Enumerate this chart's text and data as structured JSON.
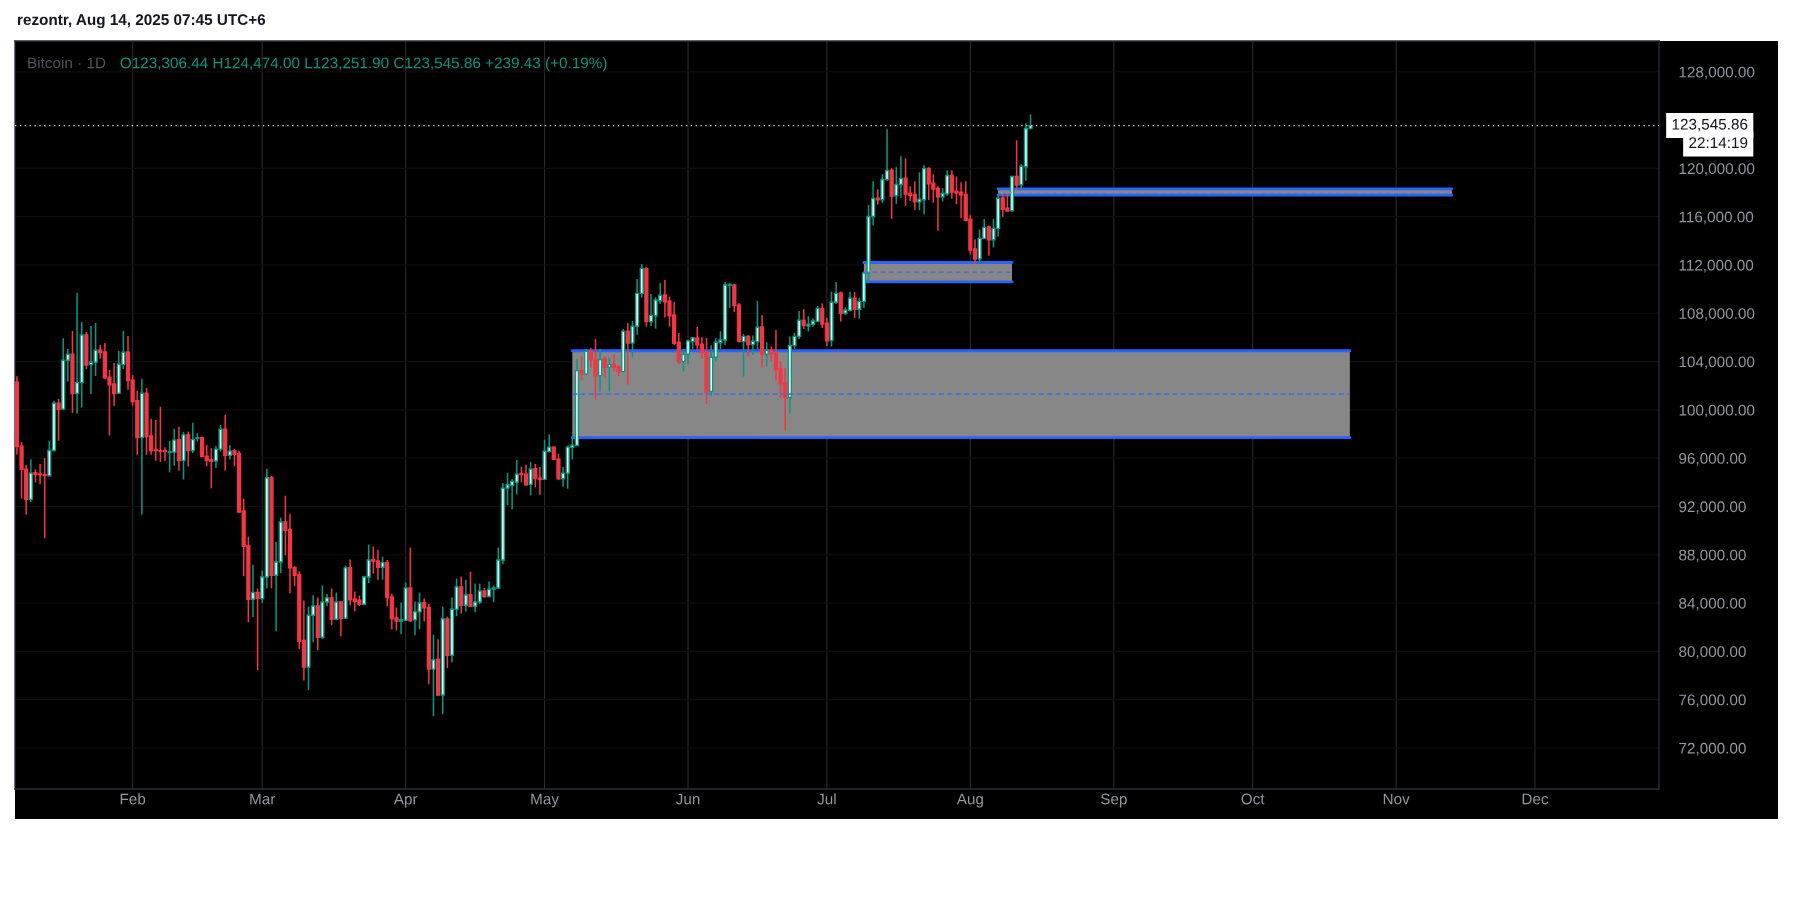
{
  "chart_data": {
    "type": "candlestick",
    "title": "rezontr, Aug 14, 2025 07:45 UTC+6",
    "subtitle": "Bitcoin · 1D",
    "annotations": [
      "O123,306.44 H124,474.00 L123,251.90 C123,545.86 +239.43 (+0.19%)",
      "22:14:19"
    ],
    "x": [
      "2025-01-07",
      "2025-01-08",
      "2025-01-09",
      "2025-01-10",
      "2025-01-11",
      "2025-01-12",
      "2025-01-13",
      "2025-01-14",
      "2025-01-15",
      "2025-01-16",
      "2025-01-17",
      "2025-01-18",
      "2025-01-19",
      "2025-01-20",
      "2025-01-21",
      "2025-01-22",
      "2025-01-23",
      "2025-01-24",
      "2025-01-25",
      "2025-01-26",
      "2025-01-27",
      "2025-01-28",
      "2025-01-29",
      "2025-01-30",
      "2025-01-31",
      "2025-02-01",
      "2025-02-02",
      "2025-02-03",
      "2025-02-04",
      "2025-02-05",
      "2025-02-06",
      "2025-02-07",
      "2025-02-08",
      "2025-02-09",
      "2025-02-10",
      "2025-02-11",
      "2025-02-12",
      "2025-02-13",
      "2025-02-14",
      "2025-02-15",
      "2025-02-16",
      "2025-02-17",
      "2025-02-18",
      "2025-02-19",
      "2025-02-20",
      "2025-02-21",
      "2025-02-22",
      "2025-02-23",
      "2025-02-24",
      "2025-02-25",
      "2025-02-26",
      "2025-02-27",
      "2025-02-28",
      "2025-03-01",
      "2025-03-02",
      "2025-03-03",
      "2025-03-04",
      "2025-03-05",
      "2025-03-06",
      "2025-03-07",
      "2025-03-08",
      "2025-03-09",
      "2025-03-10",
      "2025-03-11",
      "2025-03-12",
      "2025-03-13",
      "2025-03-14",
      "2025-03-15",
      "2025-03-16",
      "2025-03-17",
      "2025-03-18",
      "2025-03-19",
      "2025-03-20",
      "2025-03-21",
      "2025-03-22",
      "2025-03-23",
      "2025-03-24",
      "2025-03-25",
      "2025-03-26",
      "2025-03-27",
      "2025-03-28",
      "2025-03-29",
      "2025-03-30",
      "2025-03-31",
      "2025-04-01",
      "2025-04-02",
      "2025-04-03",
      "2025-04-04",
      "2025-04-05",
      "2025-04-06",
      "2025-04-07",
      "2025-04-08",
      "2025-04-09",
      "2025-04-10",
      "2025-04-11",
      "2025-04-12",
      "2025-04-13",
      "2025-04-14",
      "2025-04-15",
      "2025-04-16",
      "2025-04-17",
      "2025-04-18",
      "2025-04-19",
      "2025-04-20",
      "2025-04-21",
      "2025-04-22",
      "2025-04-23",
      "2025-04-24",
      "2025-04-25",
      "2025-04-26",
      "2025-04-27",
      "2025-04-28",
      "2025-04-29",
      "2025-04-30",
      "2025-05-01",
      "2025-05-02",
      "2025-05-03",
      "2025-05-04",
      "2025-05-05",
      "2025-05-06",
      "2025-05-07",
      "2025-05-08",
      "2025-05-09",
      "2025-05-10",
      "2025-05-11",
      "2025-05-12",
      "2025-05-13",
      "2025-05-14",
      "2025-05-15",
      "2025-05-16",
      "2025-05-17",
      "2025-05-18",
      "2025-05-19",
      "2025-05-20",
      "2025-05-21",
      "2025-05-22",
      "2025-05-23",
      "2025-05-24",
      "2025-05-25",
      "2025-05-26",
      "2025-05-27",
      "2025-05-28",
      "2025-05-29",
      "2025-05-30",
      "2025-05-31",
      "2025-06-01",
      "2025-06-02",
      "2025-06-03",
      "2025-06-04",
      "2025-06-05",
      "2025-06-06",
      "2025-06-07",
      "2025-06-08",
      "2025-06-09",
      "2025-06-10",
      "2025-06-11",
      "2025-06-12",
      "2025-06-13",
      "2025-06-14",
      "2025-06-15",
      "2025-06-16",
      "2025-06-17",
      "2025-06-18",
      "2025-06-19",
      "2025-06-20",
      "2025-06-21",
      "2025-06-22",
      "2025-06-23",
      "2025-06-24",
      "2025-06-25",
      "2025-06-26",
      "2025-06-27",
      "2025-06-28",
      "2025-06-29",
      "2025-06-30",
      "2025-07-01",
      "2025-07-02",
      "2025-07-03",
      "2025-07-04",
      "2025-07-05",
      "2025-07-06",
      "2025-07-07",
      "2025-07-08",
      "2025-07-09",
      "2025-07-10",
      "2025-07-11",
      "2025-07-12",
      "2025-07-13",
      "2025-07-14",
      "2025-07-15",
      "2025-07-16",
      "2025-07-17",
      "2025-07-18",
      "2025-07-19",
      "2025-07-20",
      "2025-07-21",
      "2025-07-22",
      "2025-07-23",
      "2025-07-24",
      "2025-07-25",
      "2025-07-26",
      "2025-07-27",
      "2025-07-28",
      "2025-07-29",
      "2025-07-30",
      "2025-07-31",
      "2025-08-01",
      "2025-08-02",
      "2025-08-03",
      "2025-08-04",
      "2025-08-05",
      "2025-08-06",
      "2025-08-07",
      "2025-08-08",
      "2025-08-09",
      "2025-08-10",
      "2025-08-11",
      "2025-08-12",
      "2025-08-13",
      "2025-08-14"
    ],
    "ohlc": [
      [
        102290,
        102790,
        96310,
        96970
      ],
      [
        97000,
        97330,
        92640,
        95070
      ],
      [
        95090,
        95450,
        91340,
        92590
      ],
      [
        92590,
        95920,
        92360,
        94760
      ],
      [
        94790,
        95090,
        93990,
        94650
      ],
      [
        94680,
        95510,
        93830,
        94630
      ],
      [
        94630,
        96000,
        89360,
        94570
      ],
      [
        94540,
        97410,
        94490,
        96640
      ],
      [
        96640,
        100750,
        96580,
        100550
      ],
      [
        100550,
        100910,
        97440,
        100030
      ],
      [
        100060,
        105930,
        100030,
        104110
      ],
      [
        104110,
        105050,
        102340,
        104610
      ],
      [
        104610,
        106540,
        99750,
        101350
      ],
      [
        101350,
        109680,
        99700,
        102260
      ],
      [
        102260,
        107280,
        100190,
        106200
      ],
      [
        106200,
        106450,
        103390,
        103720
      ],
      [
        103750,
        106950,
        101320,
        103940
      ],
      [
        103940,
        107200,
        102810,
        104940
      ],
      [
        104960,
        105380,
        104250,
        104740
      ],
      [
        104800,
        105540,
        102570,
        102650
      ],
      [
        102700,
        103310,
        97880,
        102070
      ],
      [
        102150,
        103890,
        100330,
        101350
      ],
      [
        101380,
        104880,
        101320,
        103780
      ],
      [
        103750,
        106540,
        103390,
        104770
      ],
      [
        104800,
        106120,
        101660,
        102430
      ],
      [
        102480,
        102870,
        100360,
        100690
      ],
      [
        100750,
        101570,
        96280,
        97710
      ],
      [
        97710,
        102570,
        91340,
        101380
      ],
      [
        101380,
        101820,
        96280,
        97800
      ],
      [
        97850,
        99260,
        96280,
        96640
      ],
      [
        96690,
        99170,
        95780,
        96640
      ],
      [
        96610,
        100250,
        95700,
        96560
      ],
      [
        96610,
        96910,
        95780,
        96560
      ],
      [
        96470,
        97410,
        94820,
        96530
      ],
      [
        96500,
        98430,
        95370,
        97490
      ],
      [
        97520,
        98600,
        94960,
        95810
      ],
      [
        95810,
        98170,
        94230,
        97930
      ],
      [
        97930,
        98210,
        95320,
        96640
      ],
      [
        96640,
        98930,
        96420,
        97550
      ],
      [
        97630,
        98070,
        97380,
        97690
      ],
      [
        97690,
        97800,
        96090,
        96140
      ],
      [
        96170,
        97110,
        95320,
        95810
      ],
      [
        95870,
        96830,
        93500,
        95730
      ],
      [
        95760,
        97000,
        95180,
        96750
      ],
      [
        96750,
        98730,
        96560,
        98400
      ],
      [
        98400,
        99590,
        94980,
        96230
      ],
      [
        96230,
        97080,
        95890,
        96580
      ],
      [
        96610,
        96780,
        95320,
        96310
      ],
      [
        96360,
        96610,
        91480,
        91540
      ],
      [
        91620,
        92640,
        86220,
        88700
      ],
      [
        88750,
        89500,
        82410,
        84320
      ],
      [
        84320,
        87180,
        82850,
        84870
      ],
      [
        84870,
        85200,
        78440,
        84370
      ],
      [
        84370,
        86690,
        83980,
        86160
      ],
      [
        86160,
        95120,
        85200,
        94380
      ],
      [
        94380,
        94520,
        85230,
        86300
      ],
      [
        86300,
        89060,
        81670,
        87400
      ],
      [
        87400,
        91070,
        86490,
        90710
      ],
      [
        90710,
        92890,
        87950,
        90020
      ],
      [
        90080,
        91400,
        84810,
        86910
      ],
      [
        86930,
        87070,
        85420,
        86300
      ],
      [
        86360,
        86630,
        80180,
        80840
      ],
      [
        80900,
        84210,
        77590,
        78690
      ],
      [
        78690,
        83710,
        76790,
        82990
      ],
      [
        82990,
        84650,
        80760,
        83760
      ],
      [
        83760,
        84450,
        80100,
        81170
      ],
      [
        81170,
        85450,
        81010,
        84090
      ],
      [
        84090,
        84760,
        83740,
        84430
      ],
      [
        84430,
        85200,
        82160,
        82660
      ],
      [
        82660,
        84870,
        82580,
        84090
      ],
      [
        84090,
        84150,
        81260,
        82740
      ],
      [
        82740,
        87100,
        82690,
        86910
      ],
      [
        86920,
        87600,
        83820,
        84270
      ],
      [
        84340,
        84950,
        83320,
        84150
      ],
      [
        84230,
        84620,
        83740,
        83900
      ],
      [
        83900,
        86270,
        83820,
        86160
      ],
      [
        86160,
        88840,
        85640,
        87570
      ],
      [
        87600,
        88670,
        86440,
        87460
      ],
      [
        87490,
        88420,
        85940,
        86960
      ],
      [
        86960,
        87840,
        85940,
        87350
      ],
      [
        87350,
        87570,
        83740,
        84450
      ],
      [
        84510,
        84780,
        81810,
        82720
      ],
      [
        82770,
        83630,
        81720,
        82500
      ],
      [
        82500,
        84040,
        81420,
        82610
      ],
      [
        82580,
        85690,
        82520,
        85250
      ],
      [
        85250,
        88590,
        82470,
        82520
      ],
      [
        82610,
        84120,
        81340,
        83270
      ],
      [
        83270,
        84870,
        81830,
        84010
      ],
      [
        84040,
        84370,
        82470,
        83600
      ],
      [
        83630,
        83930,
        77280,
        78530
      ],
      [
        78530,
        81390,
        74640,
        79300
      ],
      [
        79350,
        81010,
        76320,
        76380
      ],
      [
        76380,
        83710,
        74800,
        82690
      ],
      [
        82690,
        82880,
        78610,
        79680
      ],
      [
        79680,
        84450,
        79100,
        83490
      ],
      [
        83490,
        86020,
        82910,
        85340
      ],
      [
        85340,
        86190,
        83130,
        83820
      ],
      [
        83820,
        85940,
        83270,
        84670
      ],
      [
        84700,
        86600,
        83680,
        83740
      ],
      [
        83740,
        85610,
        83240,
        84090
      ],
      [
        84090,
        85610,
        83930,
        85000
      ],
      [
        85000,
        85250,
        84450,
        84540
      ],
      [
        84540,
        85780,
        84480,
        85140
      ],
      [
        85140,
        85450,
        84070,
        85250
      ],
      [
        85250,
        88590,
        85200,
        87570
      ],
      [
        87570,
        93940,
        87210,
        93520
      ],
      [
        93520,
        94790,
        92090,
        93800
      ],
      [
        93740,
        94270,
        91760,
        94080
      ],
      [
        94020,
        95840,
        93000,
        94680
      ],
      [
        94740,
        95290,
        93990,
        94650
      ],
      [
        94680,
        95450,
        93740,
        93800
      ],
      [
        93830,
        95670,
        92920,
        95090
      ],
      [
        95120,
        95530,
        93580,
        94320
      ],
      [
        94350,
        95260,
        92970,
        94240
      ],
      [
        94240,
        97520,
        94210,
        96580
      ],
      [
        96550,
        97990,
        96470,
        96910
      ],
      [
        96910,
        96970,
        95870,
        95890
      ],
      [
        95920,
        96360,
        94210,
        94290
      ],
      [
        94290,
        95260,
        93630,
        94760
      ],
      [
        94760,
        97050,
        93470,
        96910
      ],
      [
        96890,
        97800,
        95890,
        97080
      ],
      [
        97050,
        104220,
        97000,
        103250
      ],
      [
        103250,
        104470,
        102430,
        102980
      ],
      [
        102980,
        105050,
        102920,
        104850
      ],
      [
        104850,
        105130,
        103480,
        104160
      ],
      [
        104190,
        105870,
        100860,
        102840
      ],
      [
        102840,
        105050,
        101520,
        104160
      ],
      [
        104220,
        104440,
        102650,
        103530
      ],
      [
        103530,
        104300,
        101520,
        103750
      ],
      [
        103780,
        104610,
        103170,
        103530
      ],
      [
        103560,
        103720,
        102790,
        103170
      ],
      [
        103170,
        106700,
        103120,
        106510
      ],
      [
        106510,
        107200,
        102100,
        105540
      ],
      [
        105540,
        107360,
        104330,
        106920
      ],
      [
        106920,
        110840,
        106230,
        109650
      ],
      [
        109650,
        112080,
        109290,
        111720
      ],
      [
        111720,
        111800,
        106890,
        107310
      ],
      [
        107310,
        109600,
        106950,
        107830
      ],
      [
        107800,
        109320,
        106730,
        109100
      ],
      [
        109040,
        110510,
        108770,
        109490
      ],
      [
        109510,
        110750,
        107640,
        108960
      ],
      [
        109020,
        109370,
        106890,
        107800
      ],
      [
        107860,
        108930,
        105380,
        105510
      ],
      [
        105600,
        106370,
        103780,
        104000
      ],
      [
        104000,
        105050,
        103170,
        104580
      ],
      [
        104610,
        105820,
        103780,
        105710
      ],
      [
        105650,
        106040,
        105050,
        105960
      ],
      [
        105960,
        106870,
        104960,
        105380
      ],
      [
        105430,
        106010,
        104220,
        104740
      ],
      [
        104800,
        105960,
        100500,
        101460
      ],
      [
        101520,
        105350,
        101160,
        104360
      ],
      [
        104360,
        105930,
        104000,
        105600
      ],
      [
        105570,
        106510,
        105050,
        105790
      ],
      [
        105790,
        110590,
        105380,
        110340
      ],
      [
        110310,
        110450,
        108440,
        110400
      ],
      [
        110340,
        110450,
        108110,
        108630
      ],
      [
        108690,
        108850,
        105600,
        105650
      ],
      [
        105650,
        106290,
        102760,
        106090
      ],
      [
        106090,
        106200,
        104440,
        105400
      ],
      [
        105400,
        106150,
        104550,
        105680
      ],
      [
        105650,
        109020,
        105050,
        106840
      ],
      [
        106870,
        107860,
        103530,
        104610
      ],
      [
        104610,
        105600,
        103610,
        104910
      ],
      [
        104960,
        105270,
        104000,
        104660
      ],
      [
        104690,
        106620,
        102430,
        103340
      ],
      [
        103390,
        104030,
        100970,
        102180
      ],
      [
        102230,
        103450,
        98290,
        101020
      ],
      [
        101020,
        106070,
        99700,
        105320
      ],
      [
        105320,
        106370,
        105050,
        106090
      ],
      [
        106090,
        108190,
        105870,
        107420
      ],
      [
        107420,
        108350,
        106700,
        106980
      ],
      [
        106950,
        107750,
        106480,
        107090
      ],
      [
        107090,
        107580,
        106890,
        107360
      ],
      [
        107330,
        108600,
        107250,
        108410
      ],
      [
        108410,
        108820,
        106780,
        107110
      ],
      [
        107170,
        107610,
        105290,
        105710
      ],
      [
        105740,
        109790,
        105240,
        108910
      ],
      [
        108910,
        110590,
        108770,
        109650
      ],
      [
        109680,
        109790,
        107310,
        108000
      ],
      [
        108000,
        108490,
        107860,
        108270
      ],
      [
        108240,
        109790,
        108160,
        109240
      ],
      [
        109240,
        109760,
        107610,
        108330
      ],
      [
        108330,
        109290,
        107560,
        108990
      ],
      [
        108990,
        111470,
        108440,
        111330
      ],
      [
        111330,
        116960,
        110600,
        116020
      ],
      [
        116020,
        118940,
        115300,
        117510
      ],
      [
        117530,
        118280,
        116980,
        117400
      ],
      [
        117400,
        119520,
        117150,
        119080
      ],
      [
        119080,
        123240,
        118970,
        119820
      ],
      [
        119850,
        120020,
        115820,
        117700
      ],
      [
        117730,
        120100,
        117070,
        118660
      ],
      [
        118660,
        121010,
        117560,
        119160
      ],
      [
        119190,
        120840,
        116900,
        117870
      ],
      [
        117950,
        118530,
        117290,
        117780
      ],
      [
        117840,
        118940,
        116570,
        117230
      ],
      [
        117230,
        119680,
        116540,
        117450
      ],
      [
        117400,
        120260,
        116210,
        119990
      ],
      [
        119990,
        120100,
        117370,
        118720
      ],
      [
        118770,
        119520,
        117150,
        118280
      ],
      [
        118360,
        118530,
        114830,
        117640
      ],
      [
        117640,
        118360,
        117260,
        117920
      ],
      [
        117890,
        119850,
        117730,
        119410
      ],
      [
        119410,
        119850,
        117480,
        118030
      ],
      [
        118110,
        119330,
        117040,
        117950
      ],
      [
        118030,
        118860,
        115880,
        117810
      ],
      [
        117840,
        118940,
        115600,
        115710
      ],
      [
        115800,
        116130,
        112850,
        113230
      ],
      [
        113320,
        114140,
        112080,
        112490
      ],
      [
        112490,
        114920,
        112160,
        114200
      ],
      [
        114200,
        115800,
        114140,
        115110
      ],
      [
        115140,
        115270,
        112760,
        114090
      ],
      [
        114090,
        115800,
        113450,
        115030
      ],
      [
        115030,
        117870,
        114360,
        117530
      ],
      [
        117560,
        117870,
        115990,
        116620
      ],
      [
        116710,
        118000,
        116400,
        116460
      ],
      [
        116490,
        119380,
        116400,
        119330
      ],
      [
        119330,
        122330,
        118220,
        118610
      ],
      [
        118640,
        120350,
        118280,
        120180
      ],
      [
        120130,
        123740,
        118970,
        123300
      ],
      [
        123306.44,
        124474.0,
        123251.9,
        123545.86
      ]
    ],
    "colors": [
      "#f23645",
      "#f23645",
      "#f23645",
      "#089981",
      "#f23645",
      "#f23645",
      "#f23645",
      "#089981",
      "#089981",
      "#f23645",
      "#089981",
      "#089981",
      "#f23645",
      "#089981",
      "#089981",
      "#f23645",
      "#089981",
      "#089981",
      "#f23645",
      "#f23645",
      "#f23645",
      "#f23645",
      "#089981",
      "#089981",
      "#f23645",
      "#f23645",
      "#f23645",
      "#089981",
      "#f23645",
      "#f23645",
      "#f23645",
      "#f23645",
      "#f23645",
      "#089981",
      "#089981",
      "#f23645",
      "#089981",
      "#f23645",
      "#089981",
      "#089981",
      "#f23645",
      "#f23645",
      "#f23645",
      "#089981",
      "#089981",
      "#f23645",
      "#089981",
      "#f23645",
      "#f23645",
      "#f23645",
      "#f23645",
      "#089981",
      "#f23645",
      "#089981",
      "#089981",
      "#f23645",
      "#089981",
      "#089981",
      "#f23645",
      "#f23645",
      "#f23645",
      "#f23645",
      "#f23645",
      "#089981",
      "#089981",
      "#f23645",
      "#089981",
      "#089981",
      "#f23645",
      "#089981",
      "#f23645",
      "#089981",
      "#f23645",
      "#f23645",
      "#f23645",
      "#089981",
      "#089981",
      "#f23645",
      "#f23645",
      "#089981",
      "#f23645",
      "#f23645",
      "#f23645",
      "#089981",
      "#089981",
      "#f23645",
      "#089981",
      "#089981",
      "#f23645",
      "#f23645",
      "#089981",
      "#f23645",
      "#089981",
      "#f23645",
      "#089981",
      "#089981",
      "#f23645",
      "#089981",
      "#f23645",
      "#089981",
      "#089981",
      "#f23645",
      "#089981",
      "#089981",
      "#089981",
      "#089981",
      "#089981",
      "#089981",
      "#089981",
      "#f23645",
      "#f23645",
      "#089981",
      "#f23645",
      "#f23645",
      "#089981",
      "#089981",
      "#f23645",
      "#f23645",
      "#089981",
      "#089981",
      "#089981",
      "#089981",
      "#f23645",
      "#089981",
      "#f23645",
      "#f23645",
      "#089981",
      "#f23645",
      "#089981",
      "#f23645",
      "#f23645",
      "#089981",
      "#f23645",
      "#089981",
      "#089981",
      "#089981",
      "#f23645",
      "#089981",
      "#089981",
      "#089981",
      "#f23645",
      "#f23645",
      "#f23645",
      "#f23645",
      "#089981",
      "#089981",
      "#089981",
      "#f23645",
      "#f23645",
      "#f23645",
      "#089981",
      "#089981",
      "#089981",
      "#089981",
      "#089981",
      "#f23645",
      "#f23645",
      "#089981",
      "#f23645",
      "#089981",
      "#089981",
      "#f23645",
      "#089981",
      "#f23645",
      "#f23645",
      "#f23645",
      "#f23645",
      "#089981",
      "#089981",
      "#089981",
      "#f23645",
      "#089981",
      "#089981",
      "#089981",
      "#f23645",
      "#f23645",
      "#089981",
      "#089981",
      "#f23645",
      "#089981",
      "#089981",
      "#f23645",
      "#089981",
      "#089981",
      "#089981",
      "#089981",
      "#f23645",
      "#089981",
      "#089981",
      "#f23645",
      "#089981",
      "#089981",
      "#f23645",
      "#f23645",
      "#f23645",
      "#089981",
      "#089981",
      "#f23645",
      "#f23645",
      "#f23645",
      "#089981",
      "#089981",
      "#f23645",
      "#f23645",
      "#f23645",
      "#f23645",
      "#f23645",
      "#f23645",
      "#089981",
      "#089981",
      "#f23645",
      "#089981",
      "#089981",
      "#f23645",
      "#f23645",
      "#089981",
      "#f23645",
      "#089981",
      "#089981",
      "#089981"
    ],
    "series": [
      {
        "type": "line",
        "x": [
          "2025-05-07",
          "2025-10-22"
        ],
        "values": [
          101300,
          101300
        ],
        "lower": [
          97700,
          97700
        ],
        "upper": [
          104900,
          104900
        ],
        "color": "#4a6fd8",
        "line_style": "dashed"
      },
      {
        "type": "line",
        "x": [
          "2025-05-07",
          "2025-10-22"
        ],
        "values": [
          104900,
          104900
        ],
        "color": "#2962ff"
      },
      {
        "type": "line",
        "x": [
          "2025-05-07",
          "2025-10-22"
        ],
        "values": [
          97700,
          97700
        ],
        "color": "#2962ff"
      },
      {
        "type": "line",
        "x": [
          "2025-07-09",
          "2025-08-10"
        ],
        "values": [
          111400,
          111400
        ],
        "lower": [
          110600,
          110600
        ],
        "upper": [
          112200,
          112200
        ],
        "color": "#4a6fd8",
        "line_style": "dashed"
      },
      {
        "type": "line",
        "x": [
          "2025-07-09",
          "2025-08-10"
        ],
        "values": [
          112200,
          112200
        ],
        "color": "#2962ff"
      },
      {
        "type": "line",
        "x": [
          "2025-07-09",
          "2025-08-10"
        ],
        "values": [
          110600,
          110600
        ],
        "color": "#2962ff"
      },
      {
        "type": "line",
        "x": [
          "2025-08-07",
          "2025-11-13"
        ],
        "values": [
          118000,
          118000
        ],
        "lower": [
          117800,
          117800
        ],
        "upper": [
          118300,
          118300
        ],
        "color": "#8a8a8a",
        "line_style": "dashed"
      },
      {
        "type": "line",
        "x": [
          "2025-08-07",
          "2025-11-13"
        ],
        "values": [
          118300,
          118300
        ],
        "color": "#2962ff"
      },
      {
        "type": "line",
        "x": [
          "2025-08-07",
          "2025-11-13"
        ],
        "values": [
          117800,
          117800
        ],
        "color": "#2962ff"
      }
    ],
    "ref_lines": [
      {
        "axis": "y",
        "value": 123545.86,
        "label": "123,545.86",
        "color": "#d1d4dc",
        "line_style": "dotted"
      }
    ],
    "xlim": [
      "2025-01-06T14:00",
      "2025-12-27T19:00"
    ],
    "xticks": [
      {
        "value": "2025-02-01",
        "label": "Feb"
      },
      {
        "value": "2025-03-01",
        "label": "Mar"
      },
      {
        "value": "2025-04-01",
        "label": "Apr"
      },
      {
        "value": "2025-05-01",
        "label": "May"
      },
      {
        "value": "2025-06-01",
        "label": "Jun"
      },
      {
        "value": "2025-07-01",
        "label": "Jul"
      },
      {
        "value": "2025-08-01",
        "label": "Aug"
      },
      {
        "value": "2025-09-01",
        "label": "Sep"
      },
      {
        "value": "2025-10-01",
        "label": "Oct"
      },
      {
        "value": "2025-11-01",
        "label": "Nov"
      },
      {
        "value": "2025-12-01",
        "label": "Dec"
      }
    ],
    "ylim": [
      68600,
      130550
    ],
    "yticks": [
      {
        "value": 72000,
        "label": "72,000.00"
      },
      {
        "value": 76000,
        "label": "76,000.00"
      },
      {
        "value": 80000,
        "label": "80,000.00"
      },
      {
        "value": 84000,
        "label": "84,000.00"
      },
      {
        "value": 88000,
        "label": "88,000.00"
      },
      {
        "value": 92000,
        "label": "92,000.00"
      },
      {
        "value": 96000,
        "label": "96,000.00"
      },
      {
        "value": 100000,
        "label": "100,000.00"
      },
      {
        "value": 104000,
        "label": "104,000.00"
      },
      {
        "value": 108000,
        "label": "108,000.00"
      },
      {
        "value": 112000,
        "label": "112,000.00"
      },
      {
        "value": 116000,
        "label": "116,000.00"
      },
      {
        "value": 120000,
        "label": "120,000.00"
      },
      {
        "value": 128000,
        "label": "128,000.00"
      }
    ],
    "grid": true
  }
}
